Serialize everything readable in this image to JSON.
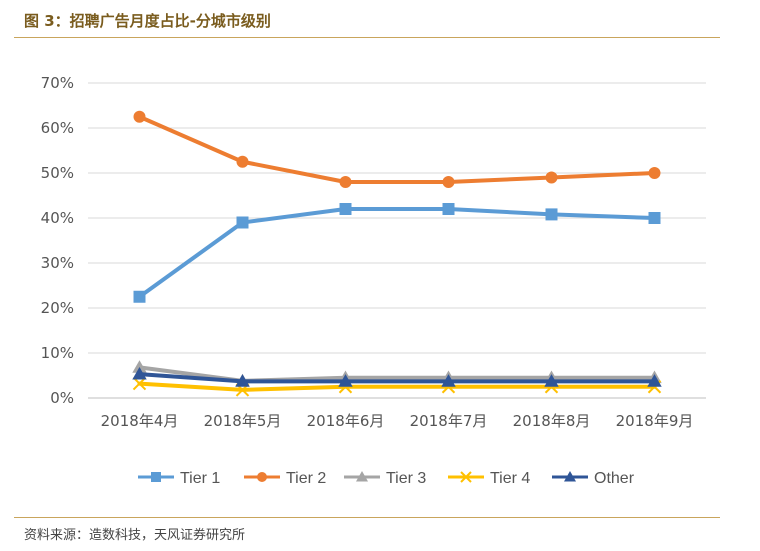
{
  "header": {
    "title": "图 3：招聘广告月度占比-分城市级别"
  },
  "footer": {
    "source": "资料来源：造数科技，天风证券研究所"
  },
  "chart_data": {
    "type": "line",
    "categories": [
      "2018年4月",
      "2018年5月",
      "2018年6月",
      "2018年7月",
      "2018年8月",
      "2018年9月"
    ],
    "y_ticks": [
      "0%",
      "10%",
      "20%",
      "30%",
      "40%",
      "50%",
      "60%",
      "70%"
    ],
    "ylim": [
      0,
      70
    ],
    "grid": true,
    "legend": "bottom",
    "series": [
      {
        "name": "Tier 1",
        "color": "#5b9bd5",
        "marker": "square",
        "values": [
          22.5,
          39,
          42,
          42,
          40.8,
          40
        ]
      },
      {
        "name": "Tier 2",
        "color": "#ed7d31",
        "marker": "circle",
        "values": [
          62.5,
          52.5,
          48,
          48,
          49,
          50
        ]
      },
      {
        "name": "Tier 3",
        "color": "#a5a5a5",
        "marker": "triangle",
        "values": [
          6.8,
          3.8,
          4.5,
          4.5,
          4.5,
          4.5
        ]
      },
      {
        "name": "Tier 4",
        "color": "#ffc000",
        "marker": "x",
        "values": [
          3.2,
          1.8,
          2.5,
          2.5,
          2.5,
          2.5
        ]
      },
      {
        "name": "Other",
        "color": "#2f5597",
        "marker": "triangle",
        "values": [
          5.3,
          3.7,
          3.7,
          3.7,
          3.7,
          3.7
        ]
      }
    ]
  }
}
